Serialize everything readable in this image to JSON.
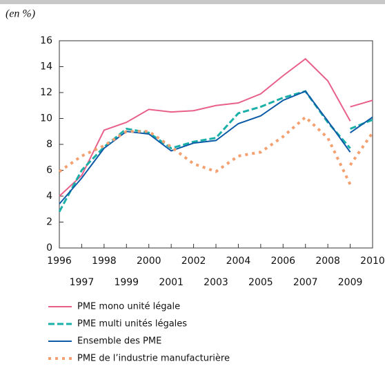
{
  "chart_data": {
    "type": "line",
    "y_label": "(en %)",
    "x": [
      1996,
      1997,
      1998,
      1999,
      2000,
      2001,
      2002,
      2003,
      2004,
      2005,
      2006,
      2007,
      2008,
      2009,
      2009,
      2009,
      2010
    ],
    "series": [
      {
        "name": "PME mono unité légale",
        "color": "#e8608a",
        "style": "solid",
        "values": [
          4.0,
          5.6,
          9.1,
          9.7,
          10.7,
          10.5,
          10.6,
          11.0,
          11.2,
          11.9,
          13.3,
          14.6,
          12.9,
          9.8,
          null,
          10.9,
          11.4
        ]
      },
      {
        "name": "PME multi unités légales",
        "color": "#1ab0a8",
        "style": "dashed",
        "values": [
          2.8,
          6.0,
          7.8,
          9.2,
          8.9,
          7.7,
          8.2,
          8.5,
          10.4,
          10.9,
          11.6,
          12.1,
          9.7,
          7.7,
          null,
          9.2,
          9.9
        ]
      },
      {
        "name": "Ensemble des PME",
        "color": "#0d5aa7",
        "style": "solid",
        "values": [
          3.4,
          5.4,
          7.7,
          9.0,
          8.8,
          7.5,
          8.1,
          8.3,
          9.6,
          10.2,
          11.4,
          12.1,
          9.8,
          7.4,
          null,
          8.9,
          10.1
        ]
      },
      {
        "name": "PME de l’industrie manufacturière",
        "color": "#f4a070",
        "style": "dotted",
        "values": [
          5.9,
          7.1,
          7.9,
          9.0,
          9.0,
          7.8,
          6.5,
          5.9,
          7.1,
          7.4,
          8.6,
          10.1,
          8.5,
          4.9,
          null,
          6.4,
          8.9
        ]
      }
    ],
    "xlim": [
      1996,
      2010
    ],
    "xticks": [
      1996,
      1997,
      1998,
      1999,
      2000,
      2001,
      2002,
      2003,
      2004,
      2005,
      2006,
      2007,
      2008,
      2009,
      2010
    ],
    "ylim": [
      0,
      16
    ],
    "yticks": [
      0,
      2,
      4,
      6,
      8,
      10,
      12,
      14,
      16
    ],
    "grid": false
  }
}
